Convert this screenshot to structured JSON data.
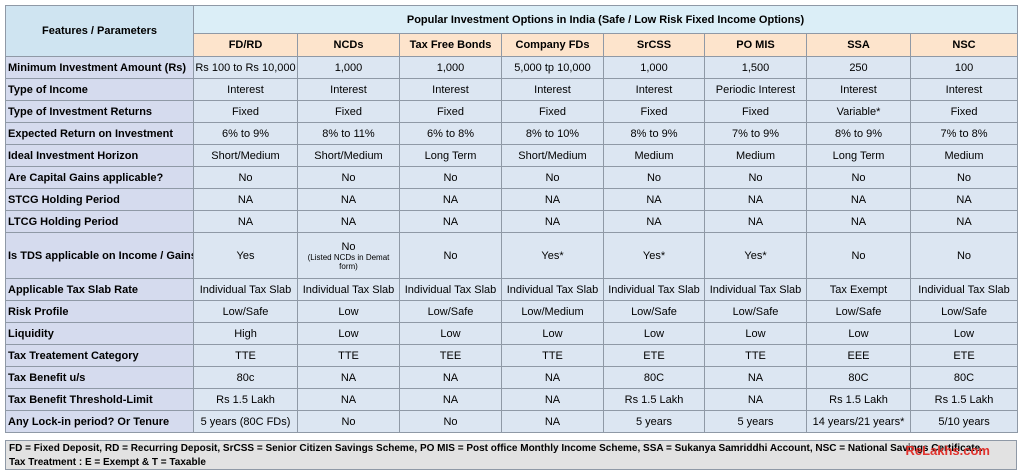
{
  "header": {
    "corner": "Features / Parameters",
    "title": "Popular Investment Options in India (Safe / Low Risk Fixed Income Options)",
    "columns": [
      "FD/RD",
      "NCDs",
      "Tax Free Bonds",
      "Company FDs",
      "SrCSS",
      "PO MIS",
      "SSA",
      "NSC"
    ]
  },
  "rows": [
    {
      "label": "Minimum Investment Amount (Rs)",
      "values": [
        "Rs 100 to Rs 10,000",
        "1,000",
        "1,000",
        "5,000 tp 10,000",
        "1,000",
        "1,500",
        "250",
        "100"
      ]
    },
    {
      "label": "Type of Income",
      "values": [
        "Interest",
        "Interest",
        "Interest",
        "Interest",
        "Interest",
        "Periodic Interest",
        "Interest",
        "Interest"
      ]
    },
    {
      "label": "Type of Investment Returns",
      "values": [
        "Fixed",
        "Fixed",
        "Fixed",
        "Fixed",
        "Fixed",
        "Fixed",
        "Variable*",
        "Fixed"
      ]
    },
    {
      "label": "Expected Return on Investment",
      "values": [
        "6% to 9%",
        "8% to 11%",
        "6% to 8%",
        "8% to 10%",
        "8% to 9%",
        "7% to 9%",
        "8% to 9%",
        "7% to 8%"
      ]
    },
    {
      "label": "Ideal Investment Horizon",
      "values": [
        "Short/Medium",
        "Short/Medium",
        "Long Term",
        "Short/Medium",
        "Medium",
        "Medium",
        "Long Term",
        "Medium"
      ]
    },
    {
      "label": "Are Capital Gains applicable?",
      "values": [
        "No",
        "No",
        "No",
        "No",
        "No",
        "No",
        "No",
        "No"
      ]
    },
    {
      "label": "STCG Holding Period",
      "values": [
        "NA",
        "NA",
        "NA",
        "NA",
        "NA",
        "NA",
        "NA",
        "NA"
      ]
    },
    {
      "label": "LTCG Holding Period",
      "values": [
        "NA",
        "NA",
        "NA",
        "NA",
        "NA",
        "NA",
        "NA",
        "NA"
      ]
    },
    {
      "label": "Is TDS applicable on Income / Gains?",
      "values": [
        "Yes",
        "No",
        "No",
        "Yes*",
        "Yes*",
        "Yes*",
        "No",
        "No"
      ],
      "notes": [
        "",
        "(Listed NCDs in Demat form)",
        "",
        "",
        "",
        "",
        "",
        ""
      ]
    },
    {
      "label": "Applicable Tax Slab Rate",
      "values": [
        "Individual Tax Slab",
        "Individual Tax Slab",
        "Individual Tax Slab",
        "Individual Tax Slab",
        "Individual Tax Slab",
        "Individual Tax Slab",
        "Tax Exempt",
        "Individual Tax Slab"
      ]
    },
    {
      "label": "Risk Profile",
      "values": [
        "Low/Safe",
        "Low",
        "Low/Safe",
        "Low/Medium",
        "Low/Safe",
        "Low/Safe",
        "Low/Safe",
        "Low/Safe"
      ]
    },
    {
      "label": "Liquidity",
      "values": [
        "High",
        "Low",
        "Low",
        "Low",
        "Low",
        "Low",
        "Low",
        "Low"
      ]
    },
    {
      "label": "Tax Treatement Category",
      "values": [
        "TTE",
        "TTE",
        "TEE",
        "TTE",
        "ETE",
        "TTE",
        "EEE",
        "ETE"
      ]
    },
    {
      "label": "Tax Benefit u/s",
      "values": [
        "80c",
        "NA",
        "NA",
        "NA",
        "80C",
        "NA",
        "80C",
        "80C"
      ]
    },
    {
      "label": "Tax Benefit Threshold-Limit",
      "values": [
        "Rs 1.5 Lakh",
        "NA",
        "NA",
        "NA",
        "Rs 1.5 Lakh",
        "NA",
        "Rs 1.5 Lakh",
        "Rs 1.5 Lakh"
      ]
    },
    {
      "label": "Any Lock-in period? Or Tenure",
      "values": [
        "5 years (80C FDs)",
        "No",
        "No",
        "NA",
        "5 years",
        "5 years",
        "14 years/21 years*",
        "5/10 years"
      ]
    }
  ],
  "footer": {
    "line1": "FD = Fixed Deposit, RD = Recurring Deposit, SrCSS = Senior Citizen Savings Scheme, PO MIS = Post office Monthly Income Scheme, SSA = Sukanya Samriddhi Account, NSC = National Savings Certificate.",
    "line2": "Tax Treatment : E = Exempt & T = Taxable",
    "brand": "ReLakhs.com"
  },
  "colors": {
    "brand": "#e0322c",
    "title_bg": "#dbeef7",
    "column_header_bg": "#fde4cc",
    "row_label_bg": "#d5dbee",
    "cell_bg": "#dce6f2",
    "footer_bg": "#e2e2e2"
  }
}
